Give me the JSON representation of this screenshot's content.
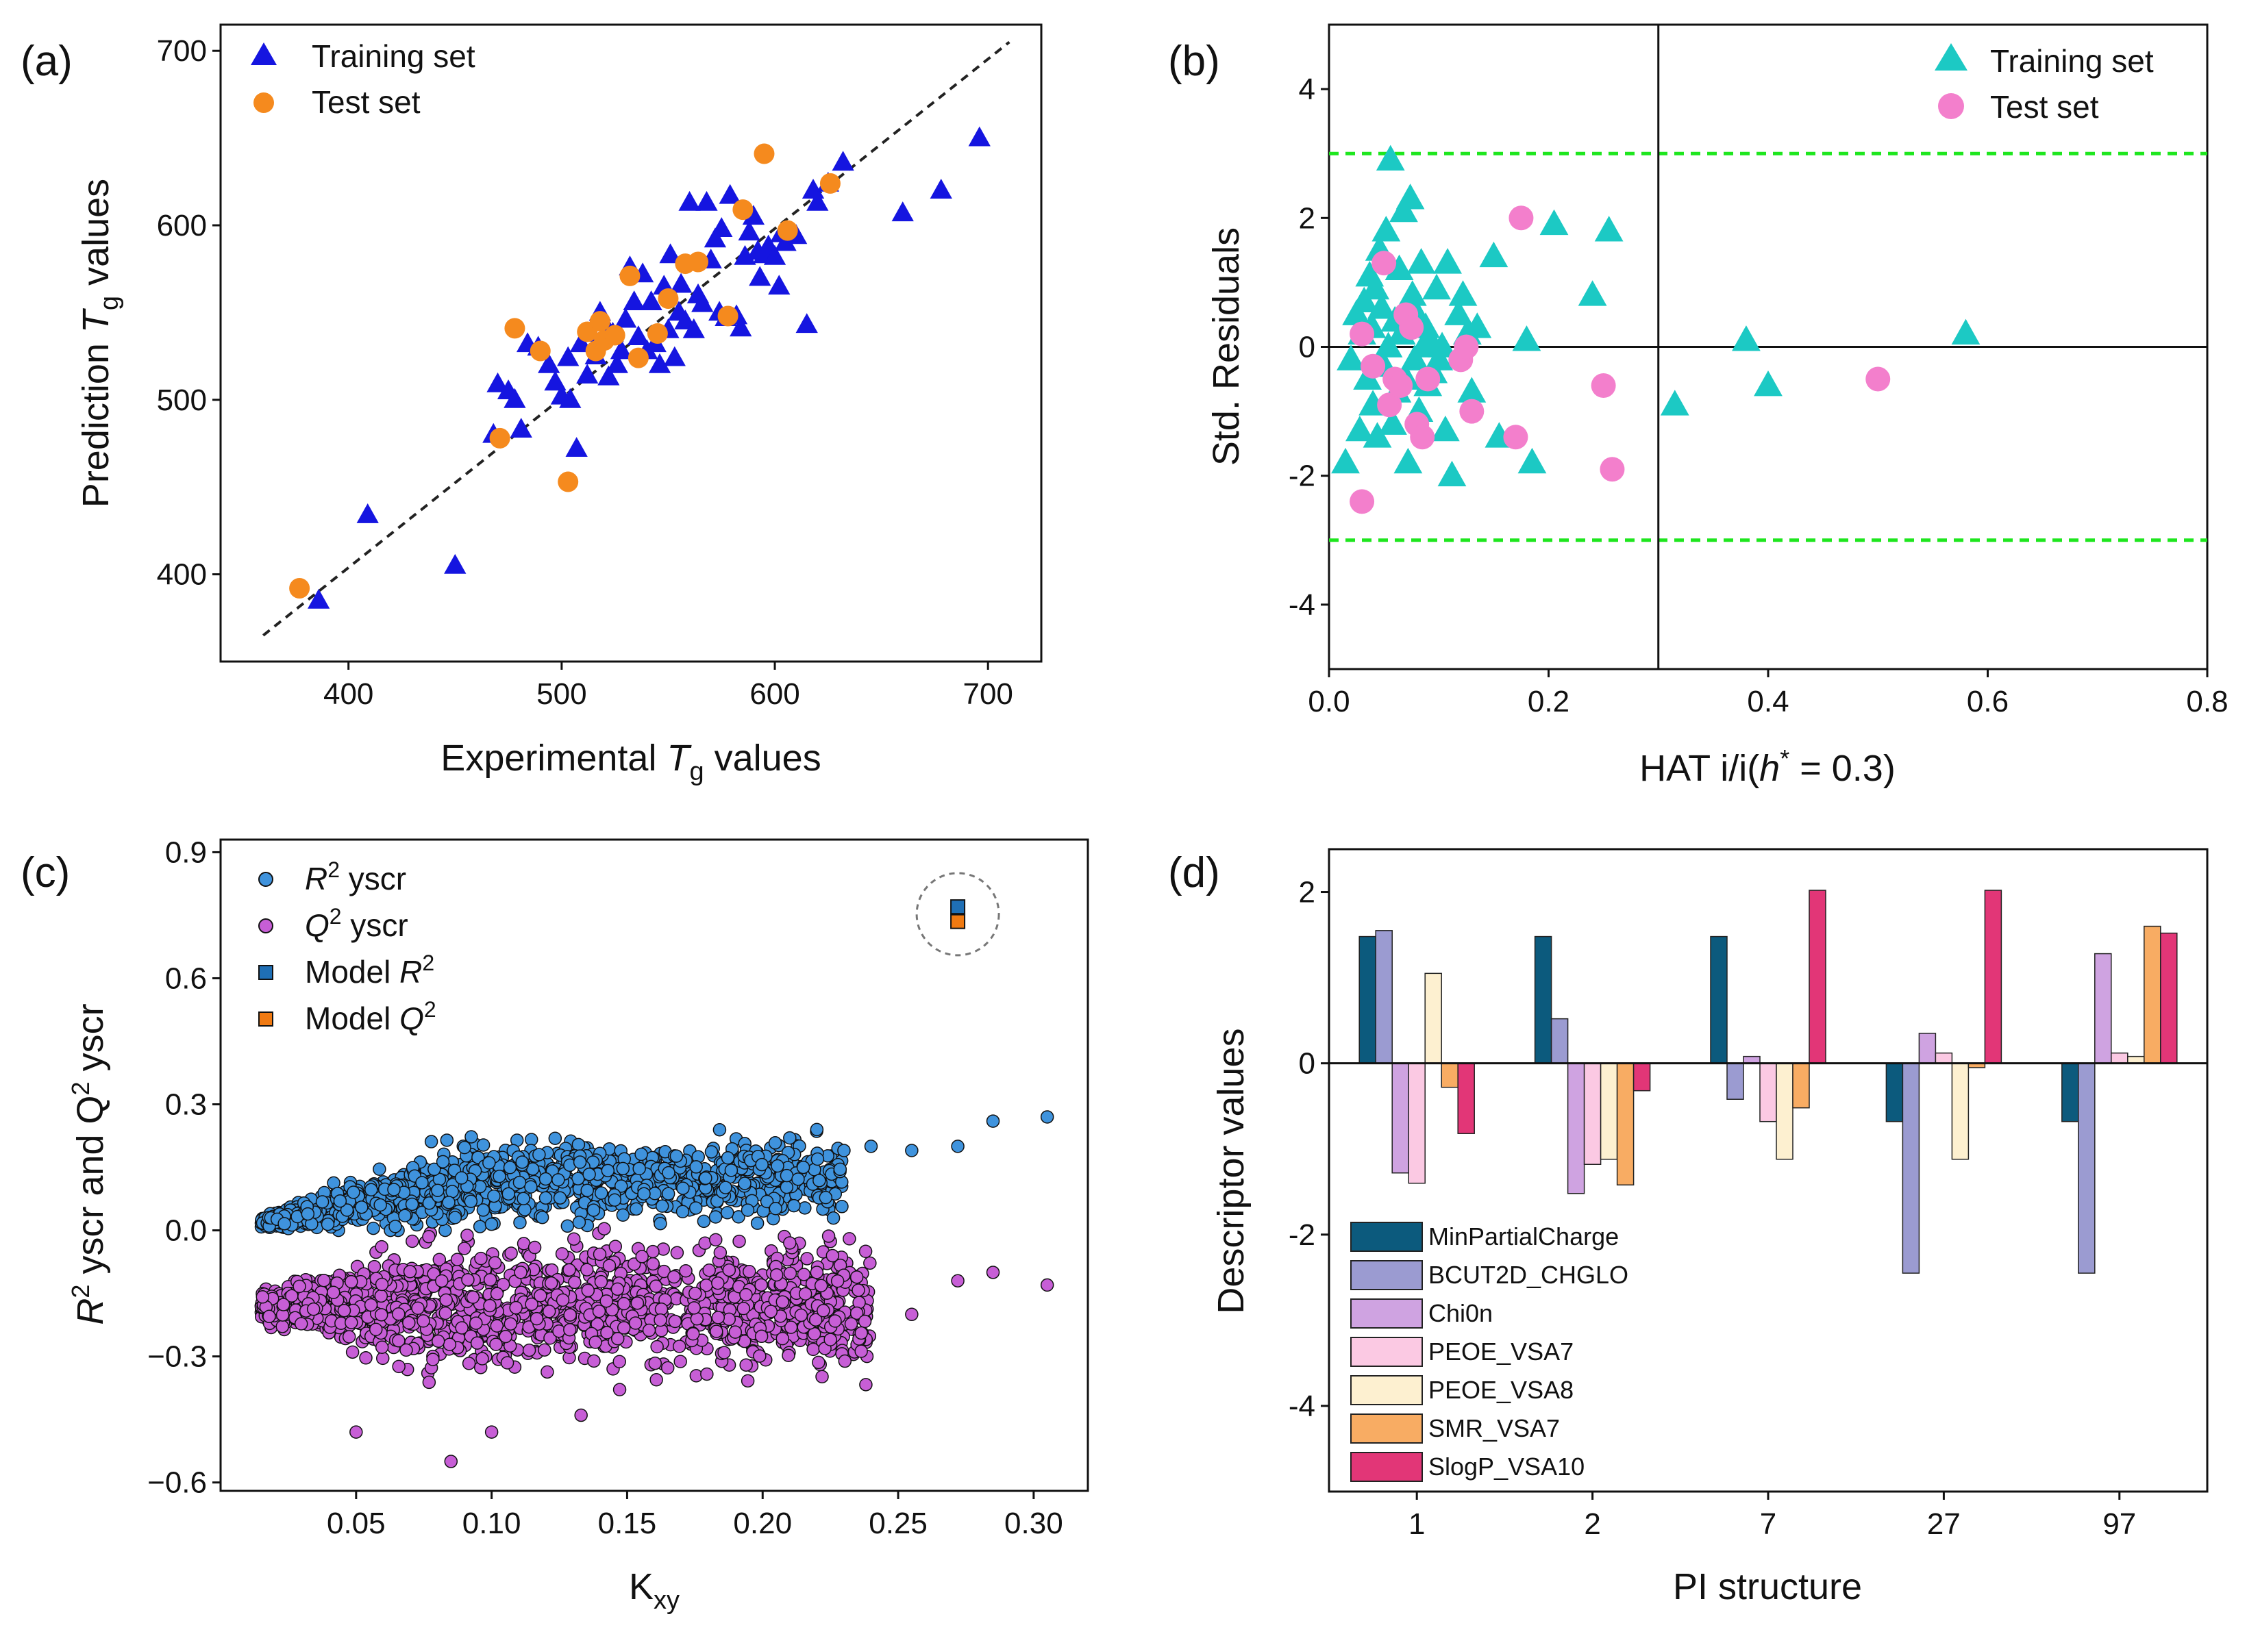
{
  "panels": [
    "(a)",
    "(b)",
    "(c)",
    "(d)"
  ],
  "colors": {
    "training": "#1515e0",
    "test": "#f58a1e",
    "train_b": "#1cc9c4",
    "test_b": "#f37fcc",
    "r2": "#3f93dd",
    "q2": "#c75ed6",
    "model_r2": "#1f6fb5",
    "model_q2": "#f07a12",
    "green": "#1ee61e"
  },
  "chart_data": [
    {
      "id": "a",
      "type": "scatter",
      "xlabel_pre": "Experimental ",
      "xlabel_sym": "T",
      "xlabel_sub": "g",
      "xlabel_post": " values",
      "ylabel_pre": "Prediction ",
      "ylabel_sym": "T",
      "ylabel_sub": "g",
      "ylabel_post": " values",
      "xlim": [
        340,
        725
      ],
      "ylim": [
        350,
        715
      ],
      "xticks": [
        "400",
        "500",
        "600",
        "700"
      ],
      "yticks": [
        "400",
        "500",
        "600",
        "700"
      ],
      "legend": [
        "Training set",
        "Test set"
      ],
      "line": [
        [
          360,
          365
        ],
        [
          710,
          705
        ]
      ],
      "series": [
        {
          "name": "Training set",
          "marker": "triangle",
          "points": [
            [
              386,
              385
            ],
            [
              409,
              434
            ],
            [
              450,
              405
            ],
            [
              468,
              480
            ],
            [
              470,
              509
            ],
            [
              475,
              505
            ],
            [
              478,
              500
            ],
            [
              481,
              483
            ],
            [
              484,
              532
            ],
            [
              489,
              530
            ],
            [
              494,
              520
            ],
            [
              497,
              510
            ],
            [
              500,
              502
            ],
            [
              503,
              524
            ],
            [
              504,
              500
            ],
            [
              507,
              472
            ],
            [
              509,
              532
            ],
            [
              512,
              514
            ],
            [
              514,
              538
            ],
            [
              516,
              525
            ],
            [
              518,
              550
            ],
            [
              520,
              544
            ],
            [
              522,
              513
            ],
            [
              524,
              538
            ],
            [
              526,
              520
            ],
            [
              528,
              528
            ],
            [
              530,
              546
            ],
            [
              532,
              576
            ],
            [
              534,
              556
            ],
            [
              536,
              536
            ],
            [
              538,
              572
            ],
            [
              540,
              528
            ],
            [
              542,
              556
            ],
            [
              544,
              532
            ],
            [
              546,
              520
            ],
            [
              548,
              565
            ],
            [
              550,
              540
            ],
            [
              551,
              583
            ],
            [
              553,
              524
            ],
            [
              555,
              550
            ],
            [
              556,
              566
            ],
            [
              558,
              545
            ],
            [
              560,
              613
            ],
            [
              562,
              540
            ],
            [
              564,
              560
            ],
            [
              566,
              555
            ],
            [
              568,
              613
            ],
            [
              570,
              580
            ],
            [
              572,
              592
            ],
            [
              574,
              550
            ],
            [
              575,
              598
            ],
            [
              577,
              547
            ],
            [
              579,
              617
            ],
            [
              582,
              548
            ],
            [
              584,
              541
            ],
            [
              586,
              582
            ],
            [
              588,
              596
            ],
            [
              590,
              605
            ],
            [
              592,
              585
            ],
            [
              593,
              570
            ],
            [
              595,
              583
            ],
            [
              597,
              588
            ],
            [
              600,
              582
            ],
            [
              602,
              565
            ],
            [
              603,
              595
            ],
            [
              605,
              590
            ],
            [
              610,
              594
            ],
            [
              615,
              543
            ],
            [
              618,
              620
            ],
            [
              620,
              613
            ],
            [
              625,
              624
            ],
            [
              632,
              636
            ],
            [
              660,
              607
            ],
            [
              678,
              620
            ],
            [
              696,
              650
            ]
          ]
        },
        {
          "name": "Test set",
          "marker": "circle",
          "points": [
            [
              377,
              392
            ],
            [
              471,
              478
            ],
            [
              478,
              541
            ],
            [
              490,
              528
            ],
            [
              503,
              453
            ],
            [
              512,
              539
            ],
            [
              516,
              528
            ],
            [
              518,
              545
            ],
            [
              520,
              534
            ],
            [
              525,
              537
            ],
            [
              532,
              571
            ],
            [
              536,
              524
            ],
            [
              545,
              538
            ],
            [
              550,
              558
            ],
            [
              558,
              578
            ],
            [
              564,
              579
            ],
            [
              578,
              548
            ],
            [
              585,
              609
            ],
            [
              595,
              641
            ],
            [
              606,
              597
            ],
            [
              626,
              624
            ]
          ]
        }
      ]
    },
    {
      "id": "b",
      "type": "scatter",
      "xlabel_pre": "HAT i/i(",
      "xlabel_sym": "h",
      "xlabel_sup": "*",
      "xlabel_post": " = 0.3)",
      "ylabel": "Std. Residuals",
      "xlim": [
        0.0,
        0.8
      ],
      "ylim": [
        -5,
        5
      ],
      "xticks": [
        "0.0",
        "0.2",
        "0.4",
        "0.6",
        "0.8"
      ],
      "yticks": [
        "-4",
        "-2",
        "0",
        "2",
        "4"
      ],
      "legend": [
        "Training set",
        "Test set"
      ],
      "hlines": [
        3,
        -3,
        0
      ],
      "vline": 0.3,
      "series": [
        {
          "name": "Training set",
          "marker": "triangle",
          "points": [
            [
              0.015,
              -1.8
            ],
            [
              0.02,
              -0.2
            ],
            [
              0.025,
              0.5
            ],
            [
              0.028,
              -1.3
            ],
            [
              0.03,
              0.2
            ],
            [
              0.032,
              0.7
            ],
            [
              0.035,
              -0.5
            ],
            [
              0.037,
              1.1
            ],
            [
              0.039,
              0.3
            ],
            [
              0.04,
              -0.9
            ],
            [
              0.042,
              0.9
            ],
            [
              0.044,
              -1.4
            ],
            [
              0.046,
              1.5
            ],
            [
              0.048,
              0.6
            ],
            [
              0.05,
              -0.3
            ],
            [
              0.052,
              1.8
            ],
            [
              0.054,
              0.0
            ],
            [
              0.056,
              2.9
            ],
            [
              0.058,
              -1.2
            ],
            [
              0.06,
              0.4
            ],
            [
              0.062,
              -0.7
            ],
            [
              0.064,
              1.2
            ],
            [
              0.066,
              0.2
            ],
            [
              0.068,
              2.1
            ],
            [
              0.07,
              -0.5
            ],
            [
              0.072,
              -1.8
            ],
            [
              0.074,
              2.3
            ],
            [
              0.076,
              0.8
            ],
            [
              0.078,
              -0.2
            ],
            [
              0.08,
              0.5
            ],
            [
              0.082,
              -1.0
            ],
            [
              0.084,
              1.3
            ],
            [
              0.086,
              0.0
            ],
            [
              0.088,
              0.3
            ],
            [
              0.09,
              -0.6
            ],
            [
              0.092,
              0.1
            ],
            [
              0.095,
              -0.4
            ],
            [
              0.098,
              0.9
            ],
            [
              0.1,
              -0.2
            ],
            [
              0.103,
              0.0
            ],
            [
              0.106,
              -1.3
            ],
            [
              0.108,
              1.3
            ],
            [
              0.112,
              -2.0
            ],
            [
              0.118,
              0.5
            ],
            [
              0.122,
              0.8
            ],
            [
              0.126,
              0.2
            ],
            [
              0.13,
              -0.7
            ],
            [
              0.135,
              0.3
            ],
            [
              0.15,
              1.4
            ],
            [
              0.155,
              -1.4
            ],
            [
              0.18,
              0.1
            ],
            [
              0.185,
              -1.8
            ],
            [
              0.205,
              1.9
            ],
            [
              0.24,
              0.8
            ],
            [
              0.255,
              1.8
            ],
            [
              0.315,
              -0.9
            ],
            [
              0.38,
              0.1
            ],
            [
              0.4,
              -0.6
            ],
            [
              0.58,
              0.2
            ]
          ]
        },
        {
          "name": "Test set",
          "marker": "circle",
          "points": [
            [
              0.03,
              0.2
            ],
            [
              0.03,
              -2.4
            ],
            [
              0.04,
              -0.3
            ],
            [
              0.05,
              1.3
            ],
            [
              0.055,
              -0.9
            ],
            [
              0.06,
              -0.5
            ],
            [
              0.065,
              -0.6
            ],
            [
              0.07,
              0.5
            ],
            [
              0.075,
              0.3
            ],
            [
              0.08,
              -1.2
            ],
            [
              0.085,
              -1.4
            ],
            [
              0.09,
              -0.5
            ],
            [
              0.12,
              -0.2
            ],
            [
              0.125,
              0.0
            ],
            [
              0.13,
              -1.0
            ],
            [
              0.17,
              -1.4
            ],
            [
              0.175,
              2.0
            ],
            [
              0.25,
              -0.6
            ],
            [
              0.258,
              -1.9
            ],
            [
              0.5,
              -0.5
            ]
          ]
        }
      ]
    },
    {
      "id": "c",
      "type": "scatter",
      "xlabel_pre": "K",
      "xlabel_sub": "xy",
      "ylabel_pre": "R",
      "ylabel_sup1": "2",
      "ylabel_mid": " yscr and Q",
      "ylabel_sup2": "2",
      "ylabel_post": " yscr",
      "xlim": [
        0.0,
        0.32
      ],
      "ylim": [
        -0.62,
        0.93
      ],
      "xticks": [
        "0.05",
        "0.10",
        "0.15",
        "0.20",
        "0.25",
        "0.30"
      ],
      "yticks": [
        "0.9",
        "0.6",
        "0.3",
        "0.0",
        "−0.3",
        "−0.6"
      ],
      "legend": [
        {
          "sym": "R",
          "sup": "2",
          "text": " yscr"
        },
        {
          "sym": "Q",
          "sup": "2",
          "text": " yscr"
        },
        {
          "sym": "",
          "pre": "Model ",
          "sym2": "R",
          "sup": "2",
          "text": ""
        },
        {
          "sym": "",
          "pre": "Model ",
          "sym2": "Q",
          "sup": "2",
          "text": ""
        }
      ],
      "model_r2": [
        0.272,
        0.77
      ],
      "model_q2": [
        0.272,
        0.735
      ],
      "r2_cloud": {
        "x_range": [
          0.015,
          0.23
        ],
        "center": 0.11,
        "n": 1300
      },
      "q2_cloud": {
        "x_range": [
          0.015,
          0.24
        ],
        "center": -0.18,
        "n": 1500
      },
      "r2_outliers": [
        [
          0.21,
          0.22
        ],
        [
          0.215,
          0.15
        ],
        [
          0.22,
          0.24
        ],
        [
          0.23,
          0.19
        ],
        [
          0.24,
          0.2
        ],
        [
          0.255,
          0.19
        ],
        [
          0.272,
          0.2
        ],
        [
          0.285,
          0.26
        ],
        [
          0.305,
          0.27
        ]
      ],
      "q2_outliers": [
        [
          0.21,
          -0.03
        ],
        [
          0.22,
          -0.1
        ],
        [
          0.225,
          -0.26
        ],
        [
          0.232,
          -0.02
        ],
        [
          0.238,
          -0.05
        ],
        [
          0.255,
          -0.2
        ],
        [
          0.272,
          -0.12
        ],
        [
          0.285,
          -0.1
        ],
        [
          0.305,
          -0.13
        ],
        [
          0.085,
          -0.55
        ],
        [
          0.1,
          -0.48
        ],
        [
          0.05,
          -0.48
        ],
        [
          0.133,
          -0.44
        ]
      ]
    },
    {
      "id": "d",
      "type": "bar",
      "xlabel": "PI structure",
      "ylabel": "Descriptor values",
      "ylim": [
        -5,
        2.5
      ],
      "yticks": [
        "2",
        "0",
        "-2",
        "-4"
      ],
      "categories": [
        "1",
        "2",
        "7",
        "27",
        "97"
      ],
      "series": [
        {
          "name": "MinPartialCharge",
          "color": "#0c5a7d",
          "values": [
            1.48,
            1.48,
            1.48,
            -0.68,
            -0.68
          ]
        },
        {
          "name": "BCUT2D_CHGLO",
          "color": "#9b9bd1",
          "values": [
            1.55,
            0.52,
            -0.42,
            -2.45,
            -2.45
          ]
        },
        {
          "name": "Chi0n",
          "color": "#cfa3e1",
          "values": [
            -1.28,
            -1.52,
            0.08,
            0.35,
            1.28
          ]
        },
        {
          "name": "PEOE_VSA7",
          "color": "#fbc9e3",
          "values": [
            -1.4,
            -1.18,
            -0.68,
            0.12,
            0.12
          ]
        },
        {
          "name": "PEOE_VSA8",
          "color": "#fdf0d0",
          "values": [
            1.05,
            -1.12,
            -1.12,
            -1.12,
            0.08
          ]
        },
        {
          "name": "SMR_VSA7",
          "color": "#f8ac63",
          "values": [
            -0.28,
            -1.42,
            -0.52,
            -0.05,
            1.6
          ]
        },
        {
          "name": "SlogP_VSA10",
          "color": "#e23677",
          "values": [
            -0.82,
            -0.32,
            2.02,
            2.02,
            1.52
          ]
        }
      ]
    }
  ]
}
